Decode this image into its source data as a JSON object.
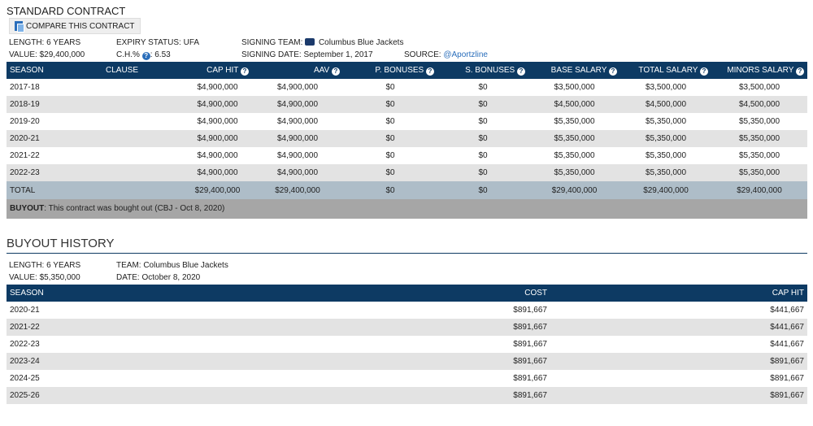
{
  "contract": {
    "section_title": "STANDARD CONTRACT",
    "compare_label": "COMPARE THIS CONTRACT",
    "meta": {
      "length": "LENGTH: 6 YEARS",
      "value": "VALUE: $29,400,000",
      "expiry": "EXPIRY STATUS: UFA",
      "ch_label": "C.H.%",
      "ch_value": "6.53",
      "signing_team_label": "SIGNING TEAM:",
      "signing_team": "Columbus Blue Jackets",
      "signing_date": "SIGNING DATE: September 1, 2017",
      "source_label": "SOURCE:",
      "source_link": "@Aportzline"
    },
    "columns": [
      "SEASON",
      "CLAUSE",
      "CAP HIT",
      "AAV",
      "P. BONUSES",
      "S. BONUSES",
      "BASE SALARY",
      "TOTAL SALARY",
      "MINORS SALARY"
    ],
    "rows": [
      [
        "2017-18",
        "",
        "$4,900,000",
        "$4,900,000",
        "$0",
        "$0",
        "$3,500,000",
        "$3,500,000",
        "$3,500,000"
      ],
      [
        "2018-19",
        "",
        "$4,900,000",
        "$4,900,000",
        "$0",
        "$0",
        "$4,500,000",
        "$4,500,000",
        "$4,500,000"
      ],
      [
        "2019-20",
        "",
        "$4,900,000",
        "$4,900,000",
        "$0",
        "$0",
        "$5,350,000",
        "$5,350,000",
        "$5,350,000"
      ],
      [
        "2020-21",
        "",
        "$4,900,000",
        "$4,900,000",
        "$0",
        "$0",
        "$5,350,000",
        "$5,350,000",
        "$5,350,000"
      ],
      [
        "2021-22",
        "",
        "$4,900,000",
        "$4,900,000",
        "$0",
        "$0",
        "$5,350,000",
        "$5,350,000",
        "$5,350,000"
      ],
      [
        "2022-23",
        "",
        "$4,900,000",
        "$4,900,000",
        "$0",
        "$0",
        "$5,350,000",
        "$5,350,000",
        "$5,350,000"
      ]
    ],
    "total": [
      "TOTAL",
      "",
      "$29,400,000",
      "$29,400,000",
      "$0",
      "$0",
      "$29,400,000",
      "$29,400,000",
      "$29,400,000"
    ],
    "buyout_label": "BUYOUT",
    "buyout_text": ": This contract was bought out (CBJ - Oct 8, 2020)"
  },
  "buyout_history": {
    "title": "BUYOUT HISTORY",
    "meta": {
      "length": "LENGTH: 6 YEARS",
      "value": "VALUE: $5,350,000",
      "team": "TEAM: Columbus Blue Jackets",
      "date": "DATE: October 8, 2020"
    },
    "columns": [
      "SEASON",
      "COST",
      "CAP HIT"
    ],
    "rows": [
      [
        "2020-21",
        "$891,667",
        "$441,667"
      ],
      [
        "2021-22",
        "$891,667",
        "$441,667"
      ],
      [
        "2022-23",
        "$891,667",
        "$441,667"
      ],
      [
        "2023-24",
        "$891,667",
        "$891,667"
      ],
      [
        "2024-25",
        "$891,667",
        "$891,667"
      ],
      [
        "2025-26",
        "$891,667",
        "$891,667"
      ]
    ]
  },
  "icons": {
    "help": "question-circle-icon",
    "compare": "compare-documents-icon",
    "team_logo": "blue-jackets-logo-icon"
  },
  "colors": {
    "header_bg": "#0d3a63",
    "total_bg": "#aebdc8",
    "buyout_bg": "#a6a6a6",
    "link": "#2a6ebb"
  }
}
